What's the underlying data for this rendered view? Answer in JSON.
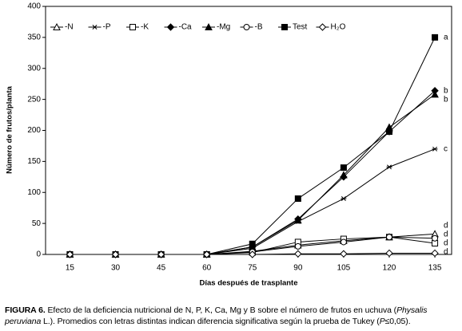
{
  "chart_data": {
    "type": "line",
    "y_label": "Número de frutos/planta",
    "x_label": "Días después de trasplante",
    "x": [
      15,
      30,
      45,
      60,
      75,
      90,
      105,
      120,
      135
    ],
    "xlim": [
      7,
      140.5
    ],
    "xticks": [
      15,
      30,
      45,
      60,
      75,
      90,
      105,
      120,
      135
    ],
    "ylim": [
      0,
      400
    ],
    "yticks": [
      0,
      50,
      100,
      150,
      200,
      250,
      300,
      350,
      400
    ],
    "grid": false,
    "series": [
      {
        "name": "-N",
        "color": "#000000",
        "marker": "triangle-open",
        "letter": "d",
        "values": [
          0,
          0,
          0,
          0,
          5,
          15,
          22,
          28,
          33
        ]
      },
      {
        "name": "-P",
        "color": "#000000",
        "marker": "asterisk",
        "letter": "c",
        "values": [
          0,
          0,
          0,
          0,
          10,
          53,
          90,
          141,
          170
        ]
      },
      {
        "name": "-K",
        "color": "#000000",
        "marker": "square-open",
        "letter": "d",
        "values": [
          0,
          0,
          0,
          0,
          3,
          20,
          25,
          28,
          18
        ]
      },
      {
        "name": "-Ca",
        "color": "#000000",
        "marker": "diamond-filled",
        "letter": "b",
        "values": [
          0,
          0,
          0,
          0,
          12,
          57,
          125,
          198,
          264
        ]
      },
      {
        "name": "-Mg",
        "color": "#000000",
        "marker": "triangle-filled",
        "letter": "b",
        "values": [
          0,
          0,
          0,
          0,
          12,
          55,
          128,
          205,
          258
        ]
      },
      {
        "name": "-B",
        "color": "#000000",
        "marker": "circle-open",
        "letter": "d",
        "values": [
          0,
          0,
          0,
          0,
          4,
          13,
          20,
          28,
          26
        ]
      },
      {
        "name": "Test",
        "color": "#000000",
        "marker": "square-filled",
        "letter": "a",
        "values": [
          0,
          0,
          0,
          0,
          17,
          90,
          140,
          198,
          350
        ]
      },
      {
        "name": "H₂O",
        "color": "#000000",
        "marker": "diamond-open",
        "letter": "d",
        "values": [
          0,
          0,
          0,
          0,
          0,
          1,
          1,
          2,
          2
        ]
      }
    ]
  },
  "caption": {
    "label": "FIGURA 6.",
    "parts": [
      "Efecto de la deficiencia nutricional de N, P, K, Ca, Mg y B sobre el número de frutos en uchuva (",
      "Physalis peruviana",
      " L.). Promedios con letras distintas indican diferencia significativa según la prueba de Tukey (",
      "P",
      "≤0,05)."
    ]
  }
}
